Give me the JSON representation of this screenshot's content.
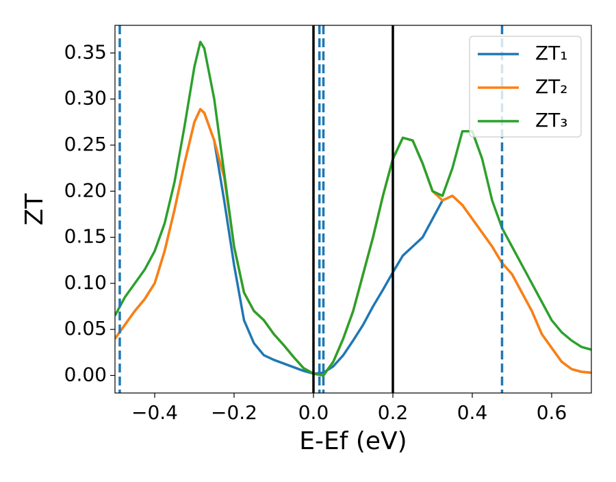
{
  "chart_data": {
    "type": "line",
    "xlabel": "E-Ef (eV)",
    "ylabel": "ZT",
    "x": [
      -0.5,
      -0.475,
      -0.45,
      -0.425,
      -0.4,
      -0.375,
      -0.35,
      -0.325,
      -0.3,
      -0.285,
      -0.275,
      -0.25,
      -0.225,
      -0.2,
      -0.175,
      -0.15,
      -0.125,
      -0.1,
      -0.075,
      -0.05,
      -0.025,
      0,
      0.025,
      0.05,
      0.075,
      0.1,
      0.125,
      0.15,
      0.175,
      0.2,
      0.225,
      0.25,
      0.275,
      0.3,
      0.325,
      0.35,
      0.375,
      0.4,
      0.425,
      0.45,
      0.475,
      0.5,
      0.525,
      0.55,
      0.575,
      0.6,
      0.625,
      0.65,
      0.675,
      0.7
    ],
    "series": [
      {
        "name": "ZT₁",
        "color": "#1f77b4",
        "values": [
          0.04,
          0.055,
          0.07,
          0.083,
          0.1,
          0.135,
          0.18,
          0.23,
          0.275,
          0.289,
          0.285,
          0.255,
          0.19,
          0.12,
          0.06,
          0.035,
          0.022,
          0.017,
          0.013,
          0.009,
          0.005,
          0.002,
          0.003,
          0.01,
          0.022,
          0.038,
          0.055,
          0.075,
          0.093,
          0.112,
          0.13,
          0.14,
          0.15,
          0.17,
          0.19,
          0.195,
          0.185,
          0.17,
          0.155,
          0.14,
          0.122,
          0.11,
          0.09,
          0.07,
          0.045,
          0.03,
          0.015,
          0.007,
          0.004,
          0.003
        ]
      },
      {
        "name": "ZT₂",
        "color": "#ff7f0e",
        "values": [
          0.04,
          0.055,
          0.07,
          0.083,
          0.1,
          0.135,
          0.18,
          0.23,
          0.275,
          0.289,
          0.285,
          0.255,
          0.215,
          0.14,
          0.09,
          0.07,
          0.06,
          0.045,
          0.033,
          0.02,
          0.008,
          0.002,
          0.0,
          0.015,
          0.04,
          0.07,
          0.11,
          0.15,
          0.195,
          0.235,
          0.258,
          0.255,
          0.23,
          0.2,
          0.19,
          0.195,
          0.185,
          0.17,
          0.155,
          0.14,
          0.122,
          0.11,
          0.09,
          0.07,
          0.045,
          0.03,
          0.015,
          0.007,
          0.004,
          0.003
        ]
      },
      {
        "name": "ZT₃",
        "color": "#2ca02c",
        "values": [
          0.065,
          0.085,
          0.1,
          0.115,
          0.135,
          0.165,
          0.21,
          0.27,
          0.335,
          0.362,
          0.355,
          0.3,
          0.22,
          0.14,
          0.09,
          0.07,
          0.06,
          0.045,
          0.033,
          0.02,
          0.008,
          0.002,
          0.0,
          0.015,
          0.04,
          0.07,
          0.11,
          0.15,
          0.195,
          0.235,
          0.258,
          0.255,
          0.23,
          0.2,
          0.195,
          0.225,
          0.265,
          0.265,
          0.235,
          0.19,
          0.16,
          0.14,
          0.12,
          0.1,
          0.08,
          0.06,
          0.047,
          0.038,
          0.031,
          0.028
        ]
      }
    ],
    "vlines": [
      {
        "x": -0.488,
        "color": "#1f77b4",
        "style": "dashed"
      },
      {
        "x": 0.0,
        "color": "#000000",
        "style": "solid"
      },
      {
        "x": 0.015,
        "color": "#1f77b4",
        "style": "dashed"
      },
      {
        "x": 0.025,
        "color": "#1f77b4",
        "style": "dashed"
      },
      {
        "x": 0.2,
        "color": "#000000",
        "style": "solid"
      },
      {
        "x": 0.475,
        "color": "#1f77b4",
        "style": "dashed"
      }
    ],
    "xlim": [
      -0.5,
      0.7
    ],
    "ylim": [
      -0.019,
      0.38
    ],
    "xticks": [
      {
        "value": -0.4,
        "label": "−0.4"
      },
      {
        "value": -0.2,
        "label": "−0.2"
      },
      {
        "value": 0,
        "label": "0.0"
      },
      0.2,
      0.4,
      0.6
    ],
    "yticks": [
      {
        "value": 0,
        "label": "0.00"
      },
      0.05,
      {
        "value": 0.1,
        "label": "0.10"
      },
      0.15,
      {
        "value": 0.2,
        "label": "0.20"
      },
      0.25,
      {
        "value": 0.3,
        "label": "0.30"
      },
      0.35
    ],
    "legend": "upper right",
    "grid": false
  }
}
